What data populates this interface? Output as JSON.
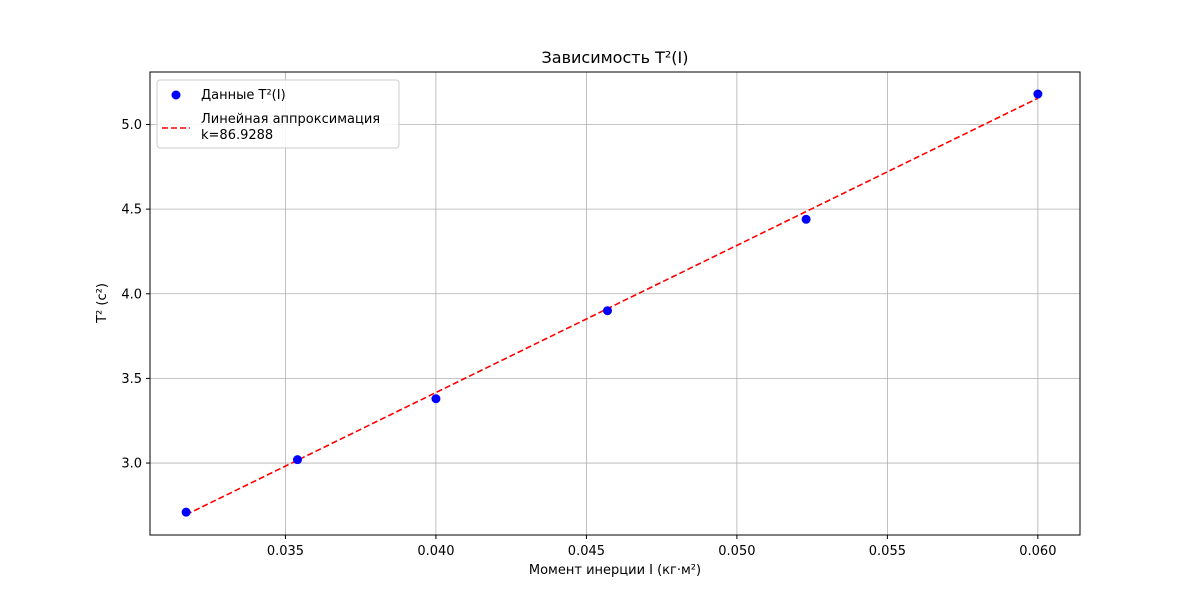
{
  "chart_data": {
    "type": "scatter",
    "title": "Зависимость T²(I)",
    "xlabel": "Момент инерции I (кг·м²)",
    "ylabel": "T² (с²)",
    "xlim": [
      0.0305,
      0.0614
    ],
    "ylim": [
      2.575,
      5.31
    ],
    "xticks": [
      0.035,
      0.04,
      0.045,
      0.05,
      0.055,
      0.06
    ],
    "xtick_labels": [
      "0.035",
      "0.040",
      "0.045",
      "0.050",
      "0.055",
      "0.060"
    ],
    "yticks": [
      3.0,
      3.5,
      4.0,
      4.5,
      5.0
    ],
    "ytick_labels": [
      "3.0",
      "3.5",
      "4.0",
      "4.5",
      "5.0"
    ],
    "grid": true,
    "legend_position": "top-left",
    "series": [
      {
        "name": "Данные T²(I)",
        "kind": "scatter",
        "color": "#0000ff",
        "x": [
          0.0317,
          0.0354,
          0.04,
          0.0457,
          0.0523,
          0.06
        ],
        "y": [
          2.71,
          3.02,
          3.38,
          3.9,
          4.44,
          5.18
        ]
      },
      {
        "name": "Линейная аппроксимация\nk=86.9288",
        "kind": "line",
        "style": "dashed",
        "color": "#ff0000",
        "x": [
          0.0317,
          0.06
        ],
        "y": [
          2.695,
          5.155
        ]
      }
    ]
  }
}
